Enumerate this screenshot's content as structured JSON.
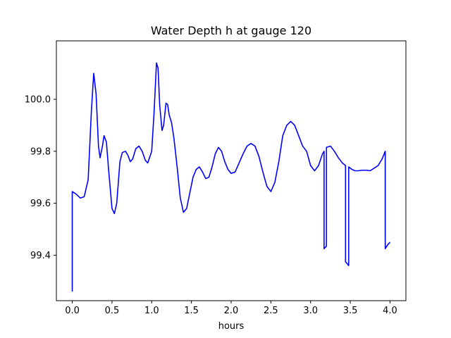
{
  "chart_data": {
    "type": "line",
    "title": "Water Depth h at gauge 120",
    "xlabel": "hours",
    "ylabel": "",
    "xlim": [
      -0.2,
      4.2
    ],
    "ylim": [
      99.225,
      100.225
    ],
    "x_ticks": [
      0.0,
      0.5,
      1.0,
      1.5,
      2.0,
      2.5,
      3.0,
      3.5,
      4.0
    ],
    "x_tick_labels": [
      "0.0",
      "0.5",
      "1.0",
      "1.5",
      "2.0",
      "2.5",
      "3.0",
      "3.5",
      "4.0"
    ],
    "y_ticks": [
      99.4,
      99.6,
      99.8,
      100.0
    ],
    "y_tick_labels": [
      "99.4",
      "99.6",
      "99.8",
      "100.0"
    ],
    "grid": false,
    "legend": "none",
    "series": [
      {
        "color": "#0000ff",
        "x": [
          0.0,
          0.0,
          0.05,
          0.1,
          0.15,
          0.2,
          0.24,
          0.27,
          0.3,
          0.33,
          0.35,
          0.38,
          0.4,
          0.43,
          0.46,
          0.5,
          0.53,
          0.56,
          0.6,
          0.63,
          0.67,
          0.7,
          0.73,
          0.76,
          0.8,
          0.84,
          0.88,
          0.92,
          0.95,
          1.0,
          1.03,
          1.06,
          1.08,
          1.1,
          1.13,
          1.15,
          1.18,
          1.2,
          1.22,
          1.25,
          1.28,
          1.32,
          1.36,
          1.4,
          1.44,
          1.48,
          1.52,
          1.56,
          1.6,
          1.64,
          1.68,
          1.72,
          1.76,
          1.8,
          1.84,
          1.88,
          1.92,
          1.96,
          2.0,
          2.05,
          2.1,
          2.15,
          2.2,
          2.25,
          2.3,
          2.35,
          2.4,
          2.45,
          2.5,
          2.55,
          2.6,
          2.65,
          2.7,
          2.75,
          2.8,
          2.85,
          2.9,
          2.95,
          3.0,
          3.05,
          3.1,
          3.15,
          3.17,
          3.17,
          3.2,
          3.2,
          3.25,
          3.3,
          3.35,
          3.4,
          3.44,
          3.44,
          3.48,
          3.48,
          3.52,
          3.56,
          3.6,
          3.65,
          3.7,
          3.75,
          3.8,
          3.85,
          3.9,
          3.94,
          3.94,
          3.97,
          4.0
        ],
        "y": [
          99.26,
          99.645,
          99.635,
          99.62,
          99.625,
          99.69,
          99.95,
          100.1,
          100.02,
          99.82,
          99.775,
          99.82,
          99.86,
          99.835,
          99.72,
          99.58,
          99.56,
          99.6,
          99.76,
          99.795,
          99.8,
          99.785,
          99.76,
          99.77,
          99.81,
          99.82,
          99.8,
          99.765,
          99.755,
          99.8,
          99.95,
          100.14,
          100.12,
          99.98,
          99.88,
          99.9,
          99.985,
          99.98,
          99.94,
          99.91,
          99.85,
          99.74,
          99.62,
          99.565,
          99.58,
          99.64,
          99.7,
          99.73,
          99.74,
          99.72,
          99.695,
          99.7,
          99.74,
          99.79,
          99.815,
          99.8,
          99.76,
          99.73,
          99.715,
          99.72,
          99.755,
          99.79,
          99.82,
          99.83,
          99.82,
          99.78,
          99.72,
          99.665,
          99.645,
          99.68,
          99.76,
          99.86,
          99.9,
          99.915,
          99.9,
          99.86,
          99.82,
          99.8,
          99.745,
          99.725,
          99.745,
          99.79,
          99.8,
          99.425,
          99.435,
          99.815,
          99.82,
          99.8,
          99.775,
          99.755,
          99.745,
          99.375,
          99.36,
          99.74,
          99.73,
          99.725,
          99.725,
          99.727,
          99.727,
          99.725,
          99.735,
          99.745,
          99.77,
          99.8,
          99.425,
          99.44,
          99.45
        ]
      }
    ]
  }
}
